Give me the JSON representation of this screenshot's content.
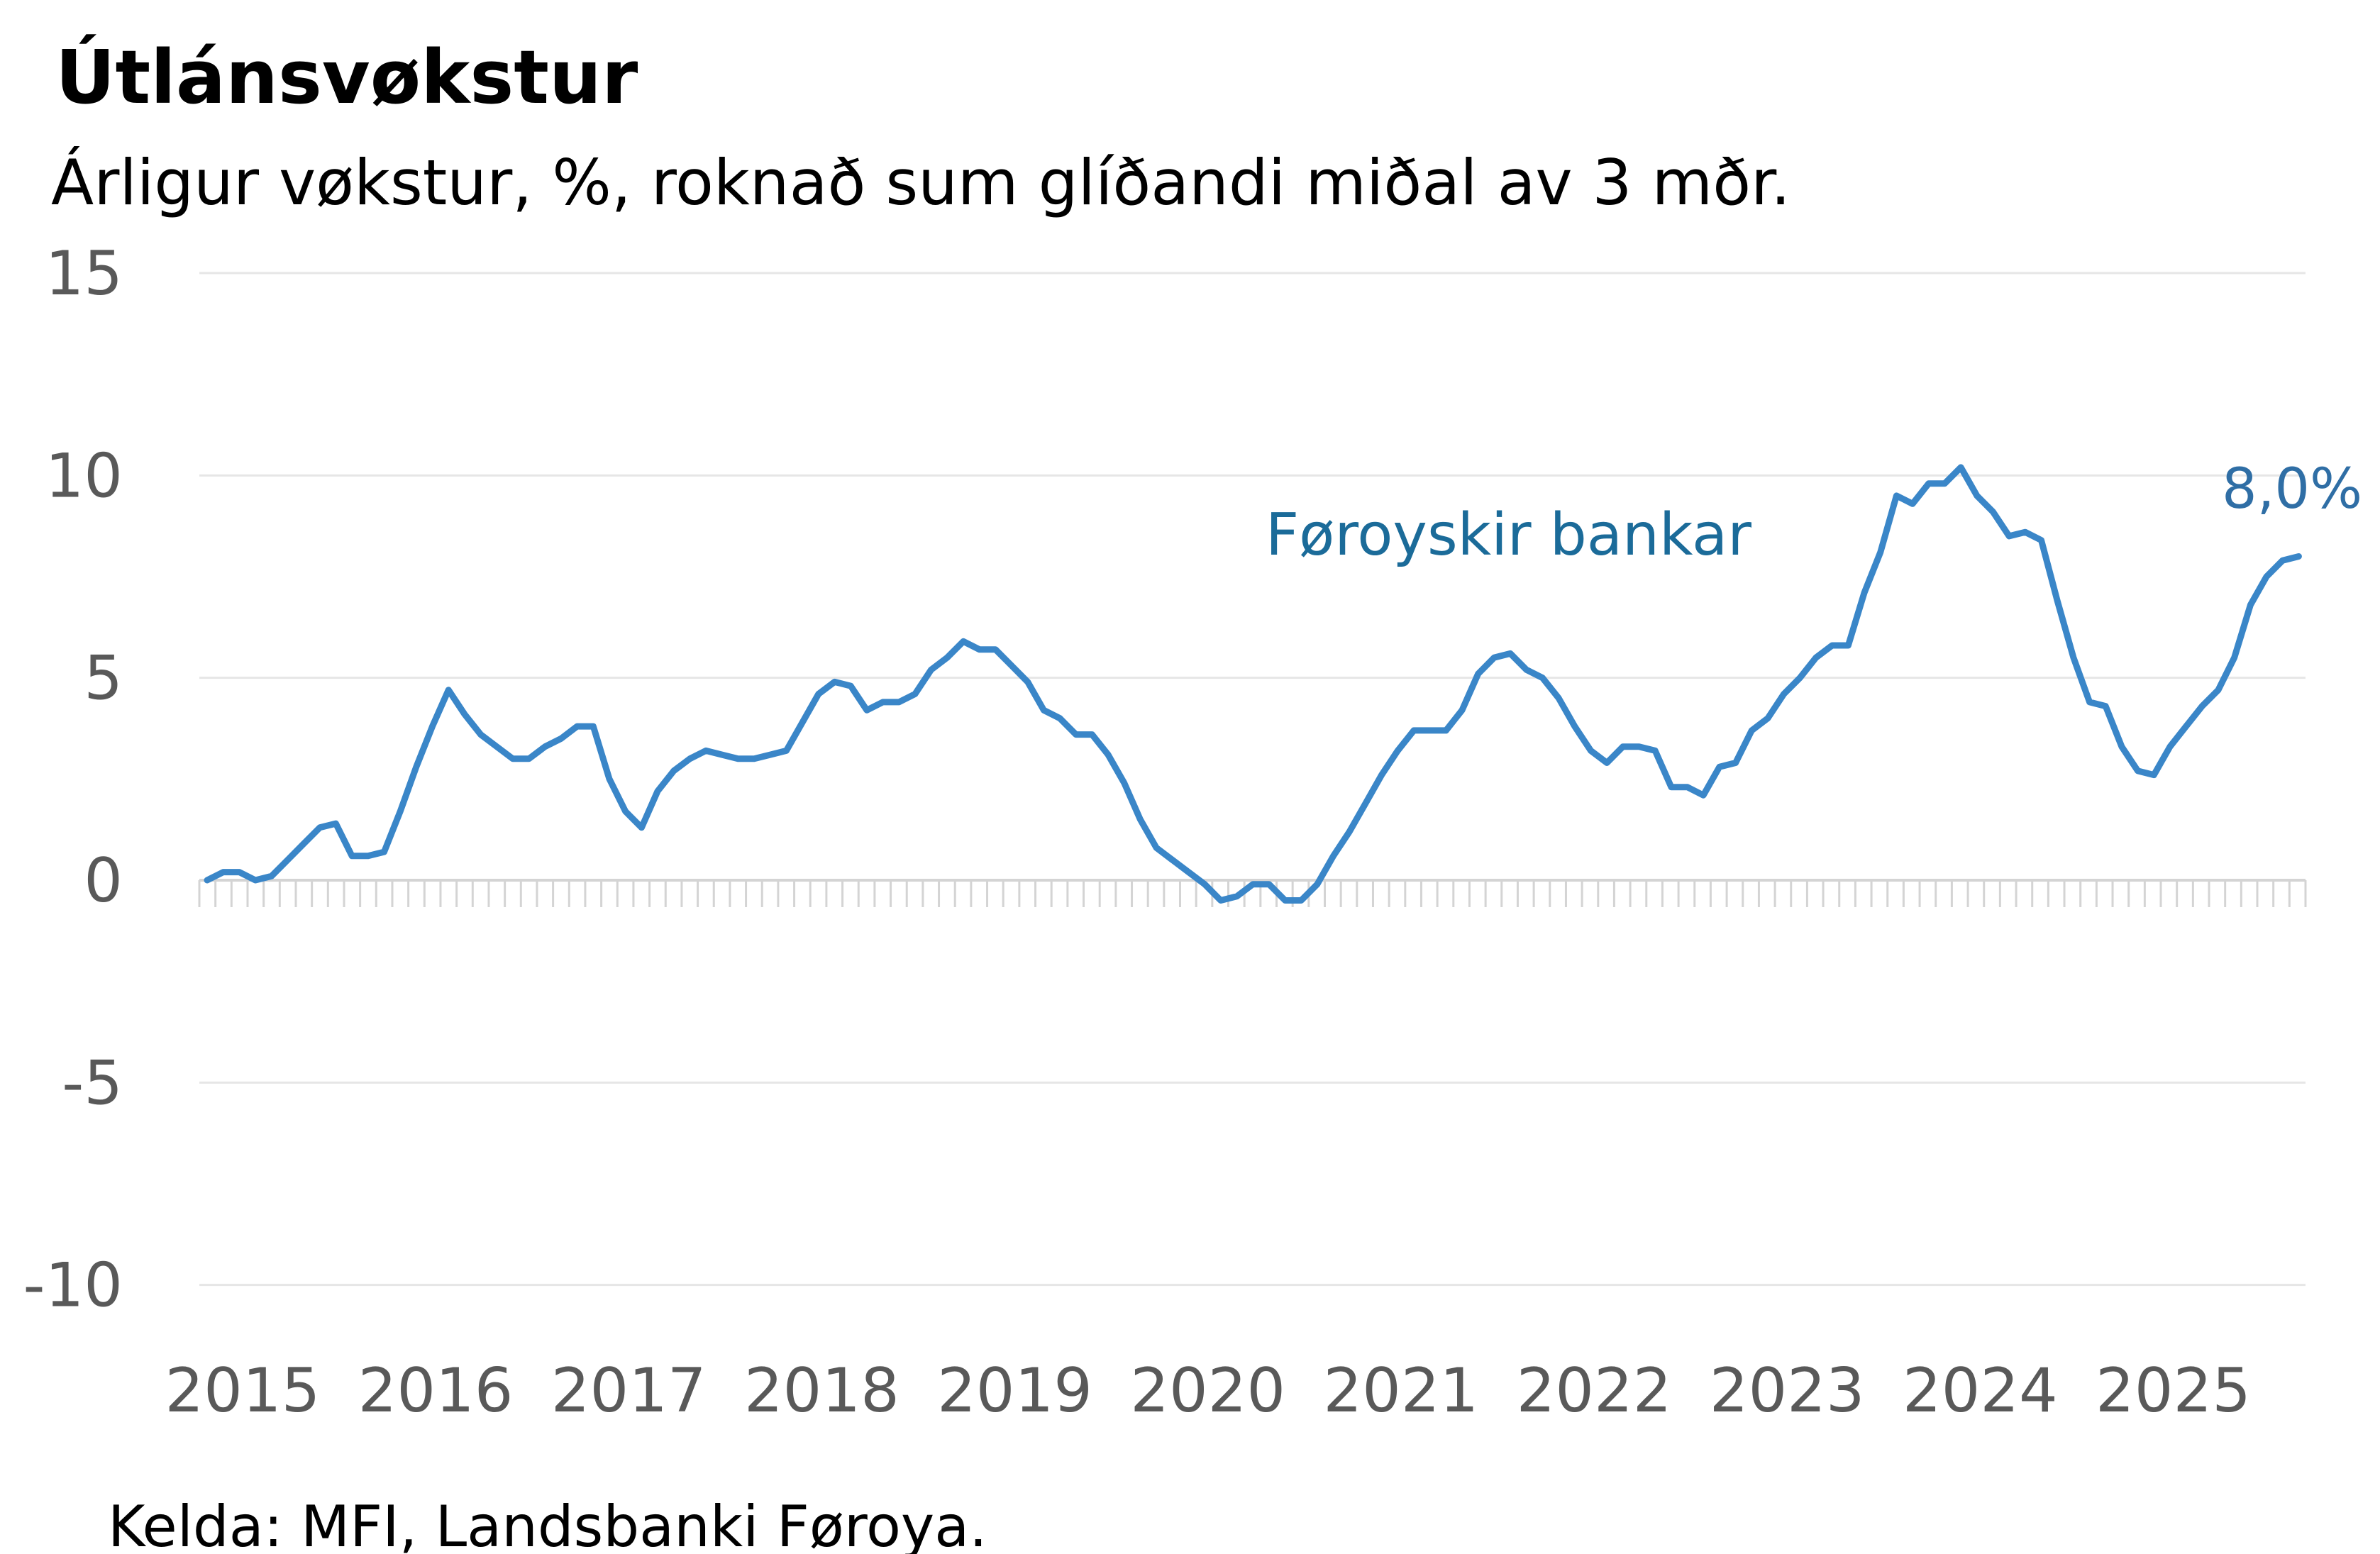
{
  "chart_data": {
    "type": "line",
    "title": "Útlánsvøkstur",
    "subtitle": "Árligur vøkstur, %, roknað sum glíðandi miðal av 3 mðr.",
    "source": "Kelda: MFI, Landsbanki Føroya.",
    "xlabel": "",
    "ylabel": "",
    "ylim": [
      -10,
      15
    ],
    "yticks": [
      "15",
      "10",
      "5",
      "0",
      "-5",
      "-10"
    ],
    "ytick_values": [
      15,
      10,
      5,
      0,
      -5,
      -10
    ],
    "xtick_labels": [
      "2015",
      "2016",
      "2017",
      "2018",
      "2019",
      "2020",
      "2021",
      "2022",
      "2023",
      "2024",
      "2025"
    ],
    "grid": true,
    "legend": "none",
    "colors": {
      "line": "#3a86c8",
      "series_label": "#1b6b99",
      "end_label": "#2f6ea5",
      "grid": "#e6e6e6",
      "axis": "#d4d4d4",
      "tick_text": "#595959"
    },
    "series": [
      {
        "name": "Føroyskir bankar",
        "end_label": "8,0%",
        "x": [
          "2015-01",
          "2015-02",
          "2015-03",
          "2015-04",
          "2015-05",
          "2015-06",
          "2015-07",
          "2015-08",
          "2015-09",
          "2015-10",
          "2015-11",
          "2015-12",
          "2016-01",
          "2016-02",
          "2016-03",
          "2016-04",
          "2016-05",
          "2016-06",
          "2016-07",
          "2016-08",
          "2016-09",
          "2016-10",
          "2016-11",
          "2016-12",
          "2017-01",
          "2017-02",
          "2017-03",
          "2017-04",
          "2017-05",
          "2017-06",
          "2017-07",
          "2017-08",
          "2017-09",
          "2017-10",
          "2017-11",
          "2017-12",
          "2018-01",
          "2018-02",
          "2018-03",
          "2018-04",
          "2018-05",
          "2018-06",
          "2018-07",
          "2018-08",
          "2018-09",
          "2018-10",
          "2018-11",
          "2018-12",
          "2019-01",
          "2019-02",
          "2019-03",
          "2019-04",
          "2019-05",
          "2019-06",
          "2019-07",
          "2019-08",
          "2019-09",
          "2019-10",
          "2019-11",
          "2019-12",
          "2020-01",
          "2020-02",
          "2020-03",
          "2020-04",
          "2020-05",
          "2020-06",
          "2020-07",
          "2020-08",
          "2020-09",
          "2020-10",
          "2020-11",
          "2020-12",
          "2021-01",
          "2021-02",
          "2021-03",
          "2021-04",
          "2021-05",
          "2021-06",
          "2021-07",
          "2021-08",
          "2021-09",
          "2021-10",
          "2021-11",
          "2021-12",
          "2022-01",
          "2022-02",
          "2022-03",
          "2022-04",
          "2022-05",
          "2022-06",
          "2022-07",
          "2022-08",
          "2022-09",
          "2022-10",
          "2022-11",
          "2022-12",
          "2023-01",
          "2023-02",
          "2023-03",
          "2023-04",
          "2023-05",
          "2023-06",
          "2023-07",
          "2023-08",
          "2023-09",
          "2023-10",
          "2023-11",
          "2023-12",
          "2024-01",
          "2024-02",
          "2024-03",
          "2024-04",
          "2024-05",
          "2024-06",
          "2024-07",
          "2024-08",
          "2024-09",
          "2024-10",
          "2024-11",
          "2024-12",
          "2025-01",
          "2025-02",
          "2025-03",
          "2025-04",
          "2025-05",
          "2025-06",
          "2025-07",
          "2025-08",
          "2025-09",
          "2025-10",
          "2025-11"
        ],
        "values": [
          0.0,
          0.2,
          0.2,
          0.0,
          0.1,
          0.5,
          0.9,
          1.3,
          1.4,
          0.6,
          0.6,
          0.7,
          1.7,
          2.8,
          3.8,
          4.7,
          4.1,
          3.6,
          3.3,
          3.0,
          3.0,
          3.3,
          3.5,
          3.8,
          3.8,
          2.5,
          1.7,
          1.3,
          2.2,
          2.7,
          3.0,
          3.2,
          3.1,
          3.0,
          3.0,
          3.1,
          3.2,
          3.9,
          4.6,
          4.9,
          4.8,
          4.2,
          4.4,
          4.4,
          4.6,
          5.2,
          5.5,
          5.9,
          5.7,
          5.7,
          5.3,
          4.9,
          4.2,
          4.0,
          3.6,
          3.6,
          3.1,
          2.4,
          1.5,
          0.8,
          0.5,
          0.2,
          -0.1,
          -0.5,
          -0.4,
          -0.1,
          -0.1,
          -0.5,
          -0.5,
          -0.1,
          0.6,
          1.2,
          1.9,
          2.6,
          3.2,
          3.7,
          3.7,
          3.7,
          4.2,
          5.1,
          5.5,
          5.6,
          5.2,
          5.0,
          4.5,
          3.8,
          3.2,
          2.9,
          3.3,
          3.3,
          3.2,
          2.3,
          2.3,
          2.1,
          2.8,
          2.9,
          3.7,
          4.0,
          4.6,
          5.0,
          5.5,
          5.8,
          5.8,
          7.1,
          8.1,
          9.5,
          9.3,
          9.8,
          9.8,
          10.2,
          9.5,
          9.1,
          8.5,
          8.6,
          8.4,
          6.9,
          5.5,
          4.4,
          4.3,
          3.3,
          2.7,
          2.6,
          3.3,
          3.8,
          4.3,
          4.7,
          5.5,
          6.8,
          7.5,
          7.9,
          8.0
        ]
      }
    ]
  }
}
